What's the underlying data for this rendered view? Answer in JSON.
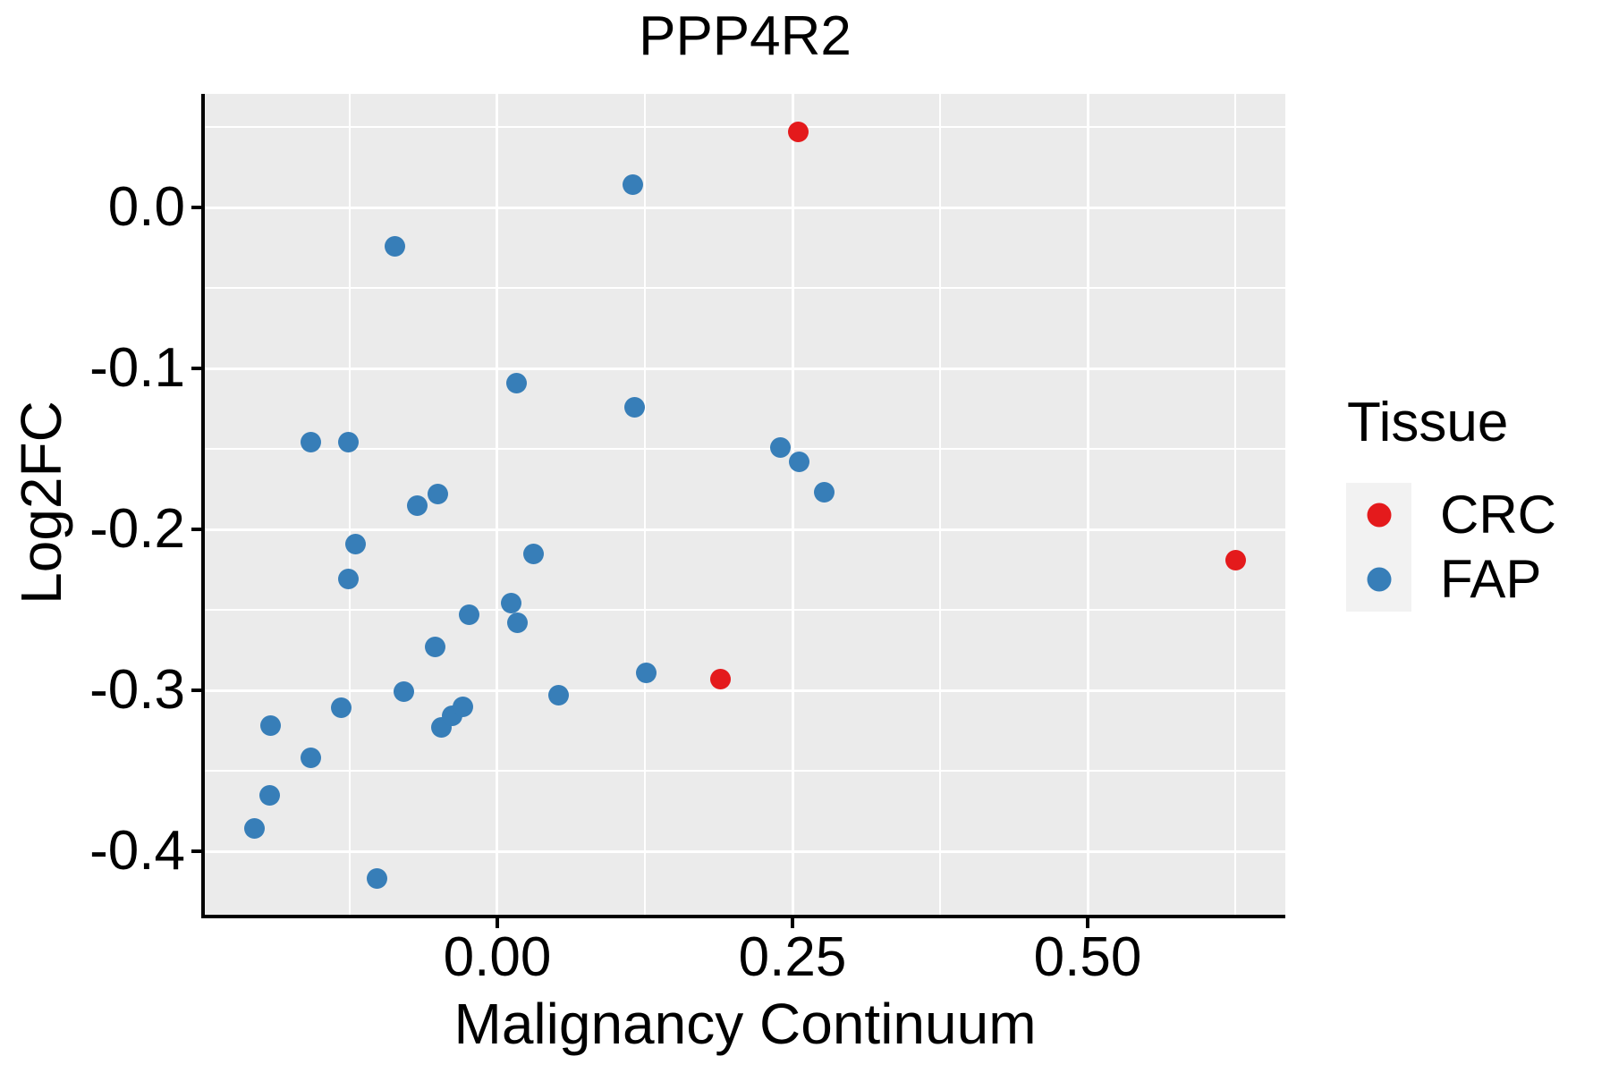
{
  "colors": {
    "crc_red": "#E41A1C",
    "fap_blue": "#377EB8",
    "panel_background": "#EBEBEB",
    "legend_key_background": "#F2F2F2",
    "gridline": "#FFFFFF",
    "axis_line": "#000000",
    "text": "#000000",
    "page_background": "#FFFFFF"
  },
  "chart_data": {
    "type": "scatter",
    "title": "PPP4R2",
    "xlabel": "Malignancy Continuum",
    "ylabel": "Log2FC",
    "xlim": [
      -0.2477,
      0.6674
    ],
    "ylim": [
      -0.4394,
      0.0706
    ],
    "grid": true,
    "x_ticks": [
      0.0,
      0.25,
      0.5
    ],
    "x_tick_labels": [
      "0.00",
      "0.25",
      "0.50"
    ],
    "x_minor_gridlines": [
      -0.125,
      0.125,
      0.375,
      0.625
    ],
    "y_ticks": [
      0.0,
      -0.1,
      -0.2,
      -0.3,
      -0.4
    ],
    "y_tick_labels": [
      "0.0",
      "-0.1",
      "-0.2",
      "-0.3",
      "-0.4"
    ],
    "y_minor_gridlines": [
      0.05,
      -0.05,
      -0.15,
      -0.25,
      -0.35
    ],
    "legend": {
      "title": "Tissue",
      "position": "right",
      "entries": [
        {
          "label": "CRC",
          "color": "#E41A1C"
        },
        {
          "label": "FAP",
          "color": "#377EB8"
        }
      ]
    },
    "series": [
      {
        "name": "FAP",
        "color": "#377EB8",
        "points": [
          [
            -0.087,
            -0.024
          ],
          [
            0.115,
            0.014
          ],
          [
            0.016,
            -0.109
          ],
          [
            0.116,
            -0.124
          ],
          [
            -0.158,
            -0.146
          ],
          [
            -0.126,
            -0.146
          ],
          [
            0.24,
            -0.149
          ],
          [
            0.256,
            -0.158
          ],
          [
            0.277,
            -0.177
          ],
          [
            -0.068,
            -0.185
          ],
          [
            -0.05,
            -0.178
          ],
          [
            -0.12,
            -0.209
          ],
          [
            -0.126,
            -0.231
          ],
          [
            -0.024,
            -0.253
          ],
          [
            0.012,
            -0.246
          ],
          [
            0.017,
            -0.258
          ],
          [
            -0.053,
            -0.273
          ],
          [
            -0.079,
            -0.301
          ],
          [
            -0.132,
            -0.311
          ],
          [
            0.052,
            -0.303
          ],
          [
            -0.192,
            -0.322
          ],
          [
            -0.158,
            -0.342
          ],
          [
            -0.047,
            -0.323
          ],
          [
            -0.038,
            -0.316
          ],
          [
            -0.029,
            -0.31
          ],
          [
            -0.193,
            -0.365
          ],
          [
            -0.206,
            -0.386
          ],
          [
            -0.102,
            -0.417
          ],
          [
            0.031,
            -0.215
          ],
          [
            0.126,
            -0.289
          ]
        ]
      },
      {
        "name": "CRC",
        "color": "#E41A1C",
        "points": [
          [
            0.255,
            0.047
          ],
          [
            0.189,
            -0.293
          ],
          [
            0.625,
            -0.219
          ]
        ]
      }
    ]
  }
}
